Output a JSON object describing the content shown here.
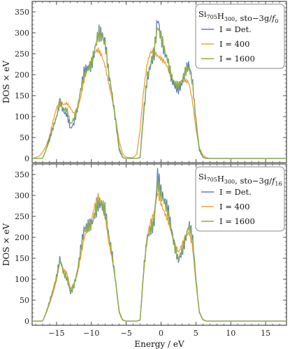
{
  "chart_data": [
    {
      "type": "line",
      "legend_title": "Si705H300, sto-3g/f0",
      "legend_title_parts": {
        "a": "Si",
        "a_sub": "705",
        "b": "H",
        "b_sub": "300",
        "c": ", sto−3g/",
        "d": "f",
        "d_sub": "0"
      },
      "legend_position": "top-right",
      "ylabel": "DOS × eV",
      "xlim": [
        -18.5,
        18
      ],
      "ylim": [
        -10,
        375
      ],
      "yticks": [
        0,
        50,
        100,
        150,
        200,
        250,
        300,
        350
      ],
      "grid": false,
      "colors": {
        "det": "#5b7fbf",
        "i400": "#e8a33c",
        "i1600": "#8bae45"
      },
      "series": [
        {
          "name": "I = Det.",
          "key": "det",
          "x": [
            -18.5,
            -17,
            -16.5,
            -16,
            -15.5,
            -15,
            -14.5,
            -14,
            -13.5,
            -13,
            -12.5,
            -12,
            -11.5,
            -11,
            -10.5,
            -10,
            -9.5,
            -9,
            -8.5,
            -8,
            -7.5,
            -7,
            -6.5,
            -6,
            -5.5,
            -5,
            -4.5,
            -4,
            -3.5,
            -3,
            -2.5,
            -2,
            -1.5,
            -1,
            -0.5,
            0,
            0.5,
            1,
            1.5,
            2,
            2.5,
            3,
            3.5,
            4,
            4.5,
            5,
            5.5,
            6,
            6.5,
            7,
            18
          ],
          "y": [
            0,
            0,
            20,
            45,
            70,
            100,
            145,
            120,
            110,
            70,
            80,
            110,
            160,
            210,
            230,
            240,
            275,
            300,
            280,
            260,
            190,
            150,
            90,
            20,
            2,
            0,
            0,
            0,
            0,
            2,
            120,
            205,
            235,
            250,
            320,
            270,
            240,
            230,
            200,
            185,
            175,
            180,
            200,
            210,
            175,
            90,
            20,
            3,
            0,
            0,
            0
          ]
        },
        {
          "name": "I = 400",
          "key": "i400",
          "x": [
            -18.5,
            -17.5,
            -17,
            -16.5,
            -16,
            -15.5,
            -15,
            -14.5,
            -14,
            -13.5,
            -13,
            -12.5,
            -12,
            -11.5,
            -11,
            -10.5,
            -10,
            -9.5,
            -9,
            -8.5,
            -8,
            -7.5,
            -7,
            -6.5,
            -6,
            -5.5,
            -5,
            -4.5,
            -4,
            -3.5,
            -3,
            -2.5,
            -2,
            -1.5,
            -1,
            -0.5,
            0,
            0.5,
            1,
            1.5,
            2,
            2.5,
            3,
            3.5,
            4,
            4.5,
            5,
            5.5,
            6,
            6.5,
            7,
            18
          ],
          "y": [
            0,
            5,
            15,
            30,
            55,
            90,
            120,
            135,
            125,
            130,
            120,
            110,
            120,
            150,
            190,
            210,
            225,
            250,
            260,
            250,
            225,
            180,
            140,
            90,
            40,
            10,
            3,
            2,
            2,
            10,
            70,
            160,
            220,
            250,
            255,
            250,
            245,
            235,
            215,
            190,
            165,
            170,
            185,
            190,
            185,
            140,
            70,
            25,
            8,
            2,
            0,
            0
          ]
        },
        {
          "name": "I = 1600",
          "key": "i1600",
          "x": [
            -18.5,
            -17,
            -16.5,
            -16,
            -15.5,
            -15,
            -14.5,
            -14,
            -13.5,
            -13,
            -12.5,
            -12,
            -11.5,
            -11,
            -10.5,
            -10,
            -9.5,
            -9,
            -8.5,
            -8,
            -7.5,
            -7,
            -6.5,
            -6,
            -5.5,
            -5,
            -4.5,
            -4,
            -3.5,
            -3,
            -2.5,
            -2,
            -1.5,
            -1,
            -0.5,
            0,
            0.5,
            1,
            1.5,
            2,
            2.5,
            3,
            3.5,
            4,
            4.5,
            5,
            5.5,
            6,
            6.5,
            7,
            18
          ],
          "y": [
            0,
            0,
            20,
            40,
            70,
            100,
            140,
            125,
            120,
            80,
            90,
            115,
            160,
            205,
            225,
            240,
            270,
            290,
            280,
            255,
            200,
            155,
            95,
            25,
            3,
            0,
            0,
            0,
            0,
            3,
            110,
            200,
            235,
            255,
            300,
            275,
            250,
            235,
            205,
            190,
            180,
            185,
            200,
            205,
            175,
            95,
            25,
            4,
            0,
            0,
            0
          ]
        }
      ]
    },
    {
      "type": "line",
      "legend_title": "Si705H300, sto-3g/f16",
      "legend_title_parts": {
        "a": "Si",
        "a_sub": "705",
        "b": "H",
        "b_sub": "300",
        "c": ", sto−3g/",
        "d": "f",
        "d_sub": "16"
      },
      "legend_position": "top-right",
      "ylabel": "DOS × eV",
      "xlabel": "Energy / eV",
      "xlim": [
        -18.5,
        18
      ],
      "ylim": [
        -10,
        375
      ],
      "xticks": [
        -15,
        -10,
        -5,
        0,
        5,
        10,
        15
      ],
      "yticks": [
        0,
        50,
        100,
        150,
        200,
        250,
        300,
        350
      ],
      "grid": false,
      "colors": {
        "det": "#5b7fbf",
        "i400": "#e8a33c",
        "i1600": "#8bae45"
      },
      "series": [
        {
          "name": "I = Det.",
          "key": "det",
          "x": [
            -18.5,
            -17,
            -16.5,
            -16,
            -15.5,
            -15,
            -14.5,
            -14,
            -13.5,
            -13,
            -12.5,
            -12,
            -11.5,
            -11,
            -10.5,
            -10,
            -9.5,
            -9,
            -8.5,
            -8,
            -7.5,
            -7,
            -6.5,
            -6,
            -5.5,
            -5,
            -4.5,
            -4,
            -3.5,
            -3,
            -2.5,
            -2,
            -1.5,
            -1,
            -0.5,
            0,
            0.5,
            1,
            1.5,
            2,
            2.5,
            3,
            3.5,
            4,
            4.5,
            5,
            5.5,
            6,
            6.5,
            7,
            18
          ],
          "y": [
            0,
            0,
            20,
            45,
            70,
            100,
            150,
            120,
            110,
            70,
            85,
            115,
            165,
            210,
            225,
            240,
            275,
            300,
            280,
            255,
            190,
            150,
            90,
            20,
            2,
            0,
            0,
            0,
            0,
            2,
            120,
            205,
            235,
            250,
            360,
            295,
            270,
            250,
            215,
            180,
            155,
            175,
            200,
            225,
            190,
            95,
            20,
            3,
            0,
            0,
            0
          ]
        },
        {
          "name": "I = 400",
          "key": "i400",
          "x": [
            -18.5,
            -17,
            -16.5,
            -16,
            -15.5,
            -15,
            -14.5,
            -14,
            -13.5,
            -13,
            -12.5,
            -12,
            -11.5,
            -11,
            -10.5,
            -10,
            -9.5,
            -9,
            -8.5,
            -8,
            -7.5,
            -7,
            -6.5,
            -6,
            -5.5,
            -5,
            -4.5,
            -4,
            -3.5,
            -3,
            -2.5,
            -2,
            -1.5,
            -1,
            -0.5,
            0,
            0.5,
            1,
            1.5,
            2,
            2.5,
            3,
            3.5,
            4,
            4.5,
            5,
            5.5,
            6,
            6.5,
            7,
            18
          ],
          "y": [
            0,
            0,
            18,
            42,
            68,
            100,
            145,
            120,
            112,
            75,
            88,
            115,
            160,
            205,
            222,
            238,
            270,
            295,
            278,
            252,
            192,
            150,
            92,
            22,
            3,
            0,
            0,
            0,
            0,
            3,
            118,
            200,
            232,
            252,
            305,
            285,
            265,
            245,
            210,
            180,
            160,
            178,
            200,
            215,
            185,
            92,
            22,
            4,
            0,
            0,
            0
          ]
        },
        {
          "name": "I = 1600",
          "key": "i1600",
          "x": [
            -18.5,
            -17,
            -16.5,
            -16,
            -15.5,
            -15,
            -14.5,
            -14,
            -13.5,
            -13,
            -12.5,
            -12,
            -11.5,
            -11,
            -10.5,
            -10,
            -9.5,
            -9,
            -8.5,
            -8,
            -7.5,
            -7,
            -6.5,
            -6,
            -5.5,
            -5,
            -4.5,
            -4,
            -3.5,
            -3,
            -2.5,
            -2,
            -1.5,
            -1,
            -0.5,
            0,
            0.5,
            1,
            1.5,
            2,
            2.5,
            3,
            3.5,
            4,
            4.5,
            5,
            5.5,
            6,
            6.5,
            7,
            18
          ],
          "y": [
            0,
            0,
            20,
            44,
            70,
            100,
            148,
            120,
            110,
            72,
            86,
            115,
            162,
            208,
            224,
            240,
            272,
            298,
            280,
            254,
            190,
            150,
            90,
            21,
            2,
            0,
            0,
            0,
            0,
            2,
            120,
            203,
            234,
            252,
            330,
            290,
            268,
            248,
            212,
            180,
            158,
            176,
            200,
            220,
            188,
            94,
            21,
            3,
            0,
            0,
            0
          ]
        }
      ]
    }
  ]
}
